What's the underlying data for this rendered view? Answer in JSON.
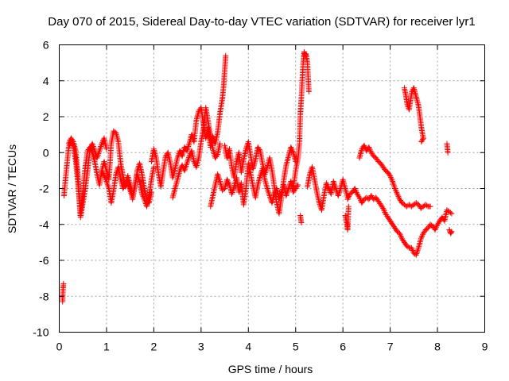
{
  "chart_data": {
    "type": "scatter",
    "title": "Day 070 of 2015, Sidereal Day-to-day VTEC variation (SDTVAR) for receiver lyr1",
    "xlabel": "GPS time / hours",
    "ylabel": "SDTVAR / TECUs",
    "xlim": [
      0,
      9
    ],
    "ylim": [
      -10,
      6
    ],
    "xticks": [
      0,
      1,
      2,
      3,
      4,
      5,
      6,
      7,
      8,
      9
    ],
    "yticks": [
      -10,
      -8,
      -6,
      -4,
      -2,
      0,
      2,
      4,
      6
    ],
    "grid": true,
    "marker": "+",
    "series": [
      {
        "name": "SDTVAR",
        "color": "#ff0000",
        "segments": [
          {
            "x": [
              0.07,
              0.08,
              0.09
            ],
            "y": [
              -8.3,
              -7.6,
              -7.3
            ]
          },
          {
            "x": [
              0.1,
              0.15,
              0.2,
              0.25,
              0.3,
              0.35,
              0.4,
              0.45,
              0.5,
              0.55,
              0.6,
              0.65,
              0.7,
              0.75,
              0.8,
              0.85,
              0.9,
              0.95,
              1.0
            ],
            "y": [
              -2.4,
              -1.0,
              0.3,
              0.6,
              0.4,
              -0.5,
              -1.8,
              -3.6,
              -2.8,
              -2.0,
              -1.0,
              0.2,
              0.5,
              0.1,
              -0.3,
              0.1,
              0.5,
              0.8,
              0.2
            ]
          },
          {
            "x": [
              0.2,
              0.25,
              0.3,
              0.35,
              0.4,
              0.45,
              0.5,
              0.55,
              0.6,
              0.65,
              0.7,
              0.75,
              0.8,
              0.85,
              0.9,
              0.95,
              1.0,
              1.05,
              1.1,
              1.15,
              1.2,
              1.25,
              1.3,
              1.35,
              1.4,
              1.45,
              1.5,
              1.55,
              1.6,
              1.65,
              1.7,
              1.75,
              1.8,
              1.85,
              1.9,
              1.95,
              2.0
            ],
            "y": [
              0.5,
              0.8,
              0.6,
              0.1,
              -1.5,
              -3.5,
              -2.2,
              -0.8,
              0.1,
              0.3,
              0.0,
              -0.5,
              -1.2,
              -1.8,
              -1.0,
              -0.5,
              -1.0,
              -1.5,
              0.5,
              1.2,
              1.1,
              0.6,
              -0.6,
              -1.3,
              -1.9,
              -1.6,
              -2.1,
              -2.5,
              -1.8,
              -1.2,
              -1.6,
              -2.3,
              -2.6,
              -3.0,
              -2.4,
              -1.5,
              -0.8
            ]
          },
          {
            "x": [
              0.9,
              0.95,
              1.0,
              1.05,
              1.1,
              1.15,
              1.2,
              1.25,
              1.3,
              1.35,
              1.4,
              1.45,
              1.5,
              1.55,
              1.6,
              1.65,
              1.7,
              1.75,
              1.8,
              1.85,
              1.9,
              1.95
            ],
            "y": [
              -1.0,
              -1.3,
              -1.6,
              -2.0,
              -2.8,
              -2.1,
              -1.2,
              -0.8,
              -1.5,
              -2.0,
              -1.7,
              -1.3,
              -1.8,
              -2.6,
              -1.9,
              -1.0,
              -0.6,
              -1.2,
              -2.0,
              -2.6,
              -2.8,
              -2.2
            ]
          },
          {
            "x": [
              1.95,
              2.0,
              2.05,
              2.1,
              2.15,
              2.2,
              2.25,
              2.3,
              2.35,
              2.4,
              2.45,
              2.5,
              2.55,
              2.6,
              2.65,
              2.7,
              2.75,
              2.8,
              2.85,
              2.9,
              2.95,
              3.0,
              3.05,
              3.1,
              3.15,
              3.2,
              3.25,
              3.3,
              3.35,
              3.4,
              3.45
            ],
            "y": [
              -0.5,
              0.2,
              -0.3,
              -1.2,
              -1.9,
              -1.0,
              -0.2,
              0.0,
              -0.6,
              -1.4,
              -0.9,
              -0.3,
              0.1,
              -0.2,
              0.3,
              0.1,
              0.5,
              1.0,
              0.6,
              1.8,
              2.3,
              2.5,
              1.6,
              0.8,
              1.4,
              0.3,
              0.9,
              0.5,
              1.1,
              2.2,
              3.0
            ]
          },
          {
            "x": [
              2.4,
              2.45,
              2.5,
              2.55,
              2.6,
              2.65,
              2.7,
              2.75,
              2.8,
              2.85,
              2.9,
              2.95,
              3.0,
              3.05,
              3.1,
              3.15,
              3.2,
              3.25,
              3.3,
              3.35,
              3.4
            ],
            "y": [
              -2.5,
              -2.0,
              -1.5,
              -1.0,
              -0.7,
              -1.0,
              -0.6,
              -0.2,
              0.1,
              -0.5,
              -0.8,
              -0.3,
              0.6,
              1.3,
              2.5,
              1.7,
              0.9,
              0.2,
              -0.3,
              -0.1,
              0.5
            ]
          },
          {
            "x": [
              3.2,
              3.25,
              3.3,
              3.35,
              3.4,
              3.45,
              3.5,
              3.55,
              3.6,
              3.65,
              3.7,
              3.75,
              3.8,
              3.85,
              3.9,
              3.95,
              4.0,
              4.05,
              4.1,
              4.15,
              4.2,
              4.25,
              4.3,
              4.35,
              4.4,
              4.45,
              4.5,
              4.55,
              4.6,
              4.65,
              4.7,
              4.75,
              4.8,
              4.85,
              4.9,
              4.95,
              5.0,
              5.05
            ],
            "y": [
              -3.0,
              -2.4,
              -1.8,
              -1.2,
              -1.6,
              -2.1,
              -2.0,
              -1.5,
              -1.8,
              -2.3,
              -1.9,
              -1.4,
              -2.2,
              -1.7,
              -2.9,
              -2.0,
              -0.6,
              -1.2,
              -1.9,
              -2.5,
              -1.8,
              -1.3,
              -0.9,
              -1.5,
              -2.0,
              -2.4,
              -2.8,
              -2.3,
              -2.0,
              -2.6,
              -2.2,
              -1.8,
              -2.4,
              -2.0,
              -1.6,
              -2.2,
              -2.0,
              -1.8
            ]
          },
          {
            "x": [
              3.5,
              3.55,
              3.6,
              3.65,
              3.7,
              3.75,
              3.8,
              3.85,
              3.9,
              3.95,
              4.0,
              4.05,
              4.1,
              4.15,
              4.2,
              4.25,
              4.3,
              4.35,
              4.4,
              4.45,
              4.5,
              4.55,
              4.6,
              4.65,
              4.7,
              4.75,
              4.8,
              4.85,
              4.9,
              4.95,
              5.0
            ],
            "y": [
              0.4,
              -0.3,
              0.2,
              -0.8,
              -1.4,
              -0.5,
              0.0,
              -1.1,
              -0.4,
              0.2,
              0.6,
              -0.2,
              -0.9,
              -0.4,
              0.3,
              0.1,
              -0.6,
              -1.2,
              -0.8,
              -0.3,
              -1.0,
              -1.9,
              -2.8,
              -3.4,
              -2.5,
              -1.5,
              -0.7,
              -0.2,
              0.3,
              0.0,
              -0.5
            ]
          },
          {
            "x": [
              3.45,
              3.48,
              3.5,
              3.52
            ],
            "y": [
              3.0,
              3.8,
              4.6,
              5.4
            ]
          },
          {
            "x": [
              4.95,
              5.0,
              5.05,
              5.08,
              5.1,
              5.12,
              5.14,
              5.16,
              5.18,
              5.2,
              5.22,
              5.25,
              5.28
            ],
            "y": [
              -2.0,
              -1.0,
              -0.3,
              0.5,
              2.2,
              3.0,
              4.0,
              5.0,
              5.6,
              5.4,
              5.5,
              5.0,
              3.4
            ]
          },
          {
            "x": [
              5.1,
              5.12
            ],
            "y": [
              -3.5,
              -3.9
            ]
          },
          {
            "x": [
              5.25,
              5.3,
              5.35,
              5.4,
              5.45,
              5.5,
              5.55,
              5.6,
              5.65,
              5.7,
              5.75,
              5.8,
              5.85,
              5.9,
              5.95,
              6.0,
              6.05,
              6.1
            ],
            "y": [
              -1.9,
              -1.2,
              -0.8,
              -1.5,
              -2.2,
              -2.8,
              -3.2,
              -2.4,
              -1.7,
              -2.0,
              -2.3,
              -1.6,
              -2.0,
              -2.4,
              -2.0,
              -1.5,
              -2.0,
              -2.5
            ]
          },
          {
            "x": [
              6.05,
              6.08,
              6.1,
              6.12
            ],
            "y": [
              -3.5,
              -3.9,
              -4.3,
              -3.0
            ]
          },
          {
            "x": [
              6.1,
              6.15,
              6.2,
              6.25,
              6.3,
              6.35,
              6.4,
              6.45,
              6.5,
              6.55,
              6.6,
              6.65,
              6.7,
              6.75,
              6.8,
              6.85,
              6.9,
              6.95,
              7.0,
              7.05,
              7.1,
              7.15,
              7.2,
              7.25,
              7.3,
              7.35,
              7.4,
              7.45,
              7.5,
              7.55,
              7.6,
              7.65,
              7.7,
              7.75,
              7.8,
              7.85,
              7.9,
              7.95,
              8.0,
              8.05,
              8.1,
              8.15,
              8.2,
              8.25,
              8.3
            ],
            "y": [
              -2.6,
              -2.3,
              -2.2,
              -2.0,
              -2.3,
              -2.5,
              -2.8,
              -2.6,
              -2.5,
              -2.6,
              -2.4,
              -2.6,
              -2.5,
              -2.7,
              -2.9,
              -3.1,
              -3.4,
              -3.6,
              -3.8,
              -4.0,
              -4.2,
              -4.4,
              -4.5,
              -4.8,
              -5.0,
              -5.2,
              -5.3,
              -5.3,
              -5.6,
              -5.7,
              -5.3,
              -4.8,
              -4.5,
              -4.3,
              -4.2,
              -4.0,
              -4.1,
              -4.3,
              -4.0,
              -3.8,
              -3.6,
              -3.8,
              -3.2,
              -3.3,
              -3.4
            ]
          },
          {
            "x": [
              6.35,
              6.4,
              6.45,
              6.5,
              6.55,
              6.6,
              6.65,
              6.7,
              6.75,
              6.8,
              6.85,
              6.9,
              6.95,
              7.0,
              7.05,
              7.1,
              7.15,
              7.2,
              7.25,
              7.3,
              7.35,
              7.4,
              7.45,
              7.5,
              7.55,
              7.6,
              7.65,
              7.7,
              7.75,
              7.8,
              7.85
            ],
            "y": [
              -0.3,
              0.2,
              0.4,
              0.1,
              0.3,
              0.0,
              -0.2,
              -0.3,
              -0.5,
              -0.6,
              -0.8,
              -1.0,
              -1.1,
              -1.3,
              -1.6,
              -2.0,
              -2.3,
              -2.6,
              -2.8,
              -2.9,
              -3.0,
              -2.9,
              -3.0,
              -2.9,
              -2.8,
              -2.9,
              -3.1,
              -3.0,
              -2.9,
              -3.0,
              -3.0
            ]
          },
          {
            "x": [
              7.3,
              7.33,
              7.36,
              7.4,
              7.43,
              7.46,
              7.5,
              7.53,
              7.56,
              7.6,
              7.63,
              7.66,
              7.7
            ],
            "y": [
              3.6,
              3.2,
              2.7,
              2.4,
              2.9,
              3.4,
              3.6,
              3.3,
              3.0,
              2.6,
              2.0,
              1.4,
              0.8
            ]
          },
          {
            "x": [
              7.66,
              7.7
            ],
            "y": [
              0.6,
              0.8
            ]
          },
          {
            "x": [
              8.2,
              8.22
            ],
            "y": [
              0.5,
              0.0
            ]
          },
          {
            "x": [
              8.25,
              8.28,
              8.3
            ],
            "y": [
              -4.3,
              -4.5,
              -4.4
            ]
          }
        ]
      }
    ]
  }
}
